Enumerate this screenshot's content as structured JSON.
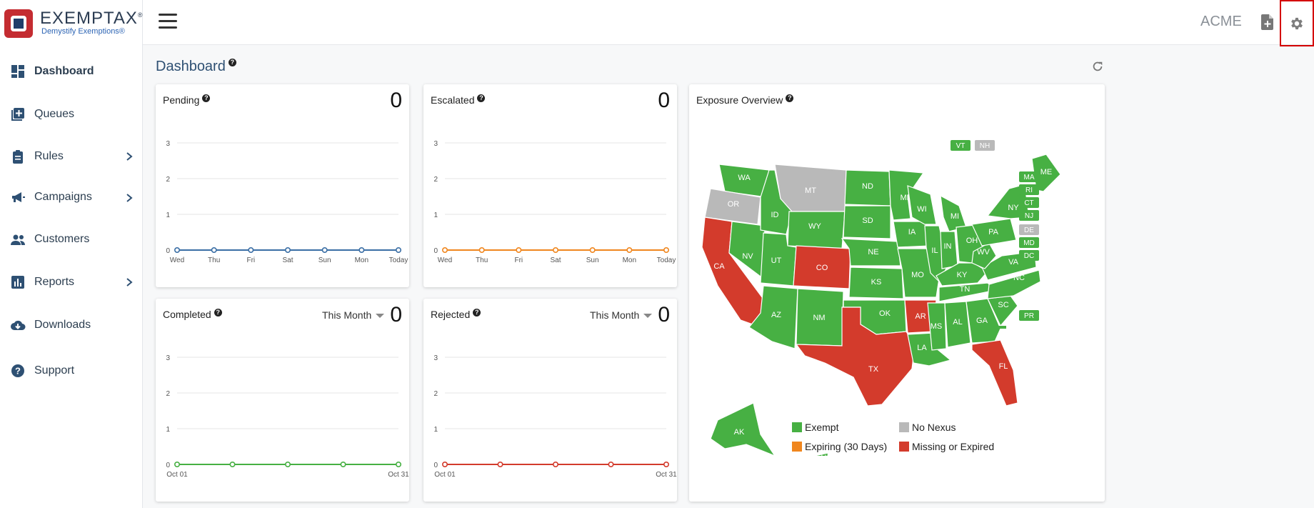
{
  "brand": {
    "name": "EXEMPTAX",
    "reg": "®",
    "tagline": "Demystify Exemptions®"
  },
  "nav": [
    {
      "label": "Dashboard",
      "icon": "dashboard-icon",
      "active": true,
      "chevron": false
    },
    {
      "label": "Queues",
      "icon": "queue-add-icon",
      "active": false,
      "chevron": false
    },
    {
      "label": "Rules",
      "icon": "clipboard-icon",
      "active": false,
      "chevron": true
    },
    {
      "label": "Campaigns",
      "icon": "megaphone-icon",
      "active": false,
      "chevron": true
    },
    {
      "label": "Customers",
      "icon": "people-icon",
      "active": false,
      "chevron": false
    },
    {
      "label": "Reports",
      "icon": "bar-chart-icon",
      "active": false,
      "chevron": true
    },
    {
      "label": "Downloads",
      "icon": "cloud-download-icon",
      "active": false,
      "chevron": false
    },
    {
      "label": "Support",
      "icon": "question-circle-icon",
      "active": false,
      "chevron": false
    }
  ],
  "header": {
    "company": "ACME"
  },
  "page": {
    "title": "Dashboard",
    "help": "?"
  },
  "cards": {
    "pending": {
      "title": "Pending",
      "count": "0"
    },
    "escalated": {
      "title": "Escalated",
      "count": "0"
    },
    "completed": {
      "title": "Completed",
      "count": "0",
      "period": "This Month"
    },
    "rejected": {
      "title": "Rejected",
      "count": "0",
      "period": "This Month"
    },
    "exposure": {
      "title": "Exposure Overview"
    }
  },
  "chart_data": [
    {
      "type": "line",
      "title": "Pending",
      "categories": [
        "Wed",
        "Thu",
        "Fri",
        "Sat",
        "Sun",
        "Mon",
        "Today"
      ],
      "series": [
        {
          "values": [
            0,
            0,
            0,
            0,
            0,
            0,
            0
          ]
        }
      ],
      "yticks": [
        "0",
        "1",
        "2",
        "3"
      ],
      "ylim": [
        0,
        3
      ],
      "color": "#3a6ea5"
    },
    {
      "type": "line",
      "title": "Escalated",
      "categories": [
        "Wed",
        "Thu",
        "Fri",
        "Sat",
        "Sun",
        "Mon",
        "Today"
      ],
      "series": [
        {
          "values": [
            0,
            0,
            0,
            0,
            0,
            0,
            0
          ]
        }
      ],
      "yticks": [
        "0",
        "1",
        "2",
        "3"
      ],
      "ylim": [
        0,
        3
      ],
      "color": "#f0861e"
    },
    {
      "type": "line",
      "title": "Completed",
      "categories": [
        "Oct 01",
        "",
        "",
        "",
        "Oct 31"
      ],
      "series": [
        {
          "values": [
            0,
            0,
            0,
            0,
            0
          ]
        }
      ],
      "yticks": [
        "0",
        "1",
        "2",
        "3"
      ],
      "ylim": [
        0,
        3
      ],
      "color": "#47b043"
    },
    {
      "type": "line",
      "title": "Rejected",
      "categories": [
        "Oct 01",
        "",
        "",
        "",
        "Oct 31"
      ],
      "series": [
        {
          "values": [
            0,
            0,
            0,
            0,
            0
          ]
        }
      ],
      "yticks": [
        "0",
        "1",
        "2",
        "3"
      ],
      "ylim": [
        0,
        3
      ],
      "color": "#d33b2c"
    }
  ],
  "map": {
    "colors": {
      "exempt": "#47b043",
      "no_nexus": "#b9b9b9",
      "expiring": "#f0861e",
      "missing": "#d33b2c"
    },
    "states": [
      {
        "code": "WA",
        "status": "exempt"
      },
      {
        "code": "OR",
        "status": "no_nexus"
      },
      {
        "code": "CA",
        "status": "missing"
      },
      {
        "code": "ID",
        "status": "exempt"
      },
      {
        "code": "NV",
        "status": "exempt"
      },
      {
        "code": "MT",
        "status": "no_nexus"
      },
      {
        "code": "WY",
        "status": "exempt"
      },
      {
        "code": "UT",
        "status": "exempt"
      },
      {
        "code": "AZ",
        "status": "exempt"
      },
      {
        "code": "CO",
        "status": "missing"
      },
      {
        "code": "NM",
        "status": "exempt"
      },
      {
        "code": "ND",
        "status": "exempt"
      },
      {
        "code": "SD",
        "status": "exempt"
      },
      {
        "code": "NE",
        "status": "exempt"
      },
      {
        "code": "KS",
        "status": "exempt"
      },
      {
        "code": "OK",
        "status": "exempt"
      },
      {
        "code": "TX",
        "status": "missing"
      },
      {
        "code": "MN",
        "status": "exempt"
      },
      {
        "code": "IA",
        "status": "exempt"
      },
      {
        "code": "MO",
        "status": "exempt"
      },
      {
        "code": "AR",
        "status": "missing"
      },
      {
        "code": "LA",
        "status": "exempt"
      },
      {
        "code": "WI",
        "status": "exempt"
      },
      {
        "code": "IL",
        "status": "exempt"
      },
      {
        "code": "MI",
        "status": "exempt"
      },
      {
        "code": "IN",
        "status": "exempt"
      },
      {
        "code": "OH",
        "status": "exempt"
      },
      {
        "code": "KY",
        "status": "exempt"
      },
      {
        "code": "TN",
        "status": "exempt"
      },
      {
        "code": "MS",
        "status": "exempt"
      },
      {
        "code": "AL",
        "status": "exempt"
      },
      {
        "code": "GA",
        "status": "exempt"
      },
      {
        "code": "FL",
        "status": "missing"
      },
      {
        "code": "SC",
        "status": "exempt"
      },
      {
        "code": "NC",
        "status": "exempt"
      },
      {
        "code": "VA",
        "status": "exempt"
      },
      {
        "code": "WV",
        "status": "exempt"
      },
      {
        "code": "PA",
        "status": "exempt"
      },
      {
        "code": "NY",
        "status": "exempt"
      },
      {
        "code": "ME",
        "status": "exempt"
      },
      {
        "code": "AK",
        "status": "exempt"
      },
      {
        "code": "HI",
        "status": "exempt"
      }
    ],
    "callouts": [
      {
        "code": "VT",
        "status": "exempt"
      },
      {
        "code": "NH",
        "status": "no_nexus"
      },
      {
        "code": "MA",
        "status": "exempt"
      },
      {
        "code": "RI",
        "status": "exempt"
      },
      {
        "code": "CT",
        "status": "exempt"
      },
      {
        "code": "NJ",
        "status": "exempt"
      },
      {
        "code": "DE",
        "status": "no_nexus"
      },
      {
        "code": "MD",
        "status": "exempt"
      },
      {
        "code": "DC",
        "status": "exempt"
      },
      {
        "code": "PR",
        "status": "exempt"
      }
    ],
    "legend": [
      {
        "label": "Exempt",
        "status": "exempt"
      },
      {
        "label": "No Nexus",
        "status": "no_nexus"
      },
      {
        "label": "Expiring (30 Days)",
        "status": "expiring"
      },
      {
        "label": "Missing or Expired",
        "status": "missing"
      }
    ]
  }
}
